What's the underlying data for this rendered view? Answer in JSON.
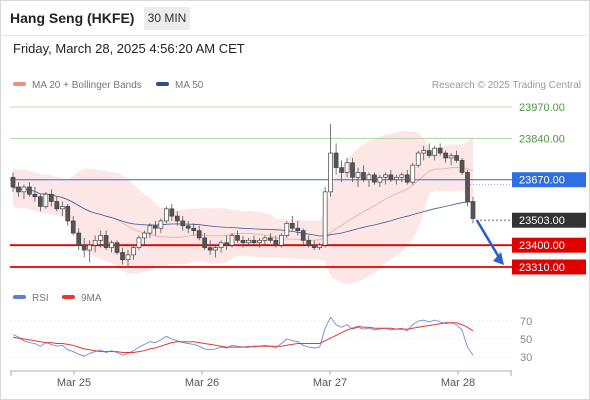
{
  "header": {
    "title": "Hang Seng (HKFE)",
    "timeframe": "30 MIN"
  },
  "datetime": "Friday, March 28, 2025 4:56:20 AM CET",
  "legend": {
    "bollinger": {
      "label": "MA 20 + Bollinger Bands",
      "color": "#f28b82"
    },
    "ma50": {
      "label": "MA 50",
      "color": "#2e4f8c"
    },
    "rsi": {
      "label": "RSI",
      "color": "#5b7fd6"
    },
    "rsi_ma": {
      "label": "9MA",
      "color": "#e53935"
    }
  },
  "credit": "Research © 2025 Trading Central",
  "levels": [
    {
      "label": "23970.00",
      "value": 23970,
      "style": "green"
    },
    {
      "label": "23840.00",
      "value": 23840,
      "style": "green"
    },
    {
      "label": "23670.00",
      "value": 23670,
      "style": "blue"
    },
    {
      "label": "23503.00",
      "value": 23503,
      "style": "last"
    },
    {
      "label": "23400.00",
      "value": 23400,
      "style": "red"
    },
    {
      "label": "23310.00",
      "value": 23310,
      "style": "red"
    }
  ],
  "rsi_ticks": [
    "70",
    "50",
    "30"
  ],
  "x_labels": [
    "Mar 25",
    "Mar 26",
    "Mar 27",
    "Mar 28"
  ],
  "chart_data": {
    "type": "candlestick",
    "price_range": [
      23260,
      24010
    ],
    "rsi_range": [
      20,
      80
    ],
    "candles": [
      [
        23680,
        23700,
        23620,
        23640
      ],
      [
        23640,
        23660,
        23600,
        23620
      ],
      [
        23620,
        23650,
        23590,
        23640
      ],
      [
        23640,
        23660,
        23600,
        23610
      ],
      [
        23610,
        23640,
        23580,
        23600
      ],
      [
        23600,
        23610,
        23540,
        23560
      ],
      [
        23560,
        23620,
        23550,
        23610
      ],
      [
        23610,
        23630,
        23560,
        23580
      ],
      [
        23580,
        23600,
        23540,
        23550
      ],
      [
        23550,
        23580,
        23520,
        23560
      ],
      [
        23560,
        23570,
        23480,
        23500
      ],
      [
        23500,
        23520,
        23440,
        23450
      ],
      [
        23450,
        23470,
        23380,
        23400
      ],
      [
        23400,
        23430,
        23350,
        23380
      ],
      [
        23380,
        23420,
        23330,
        23400
      ],
      [
        23400,
        23440,
        23370,
        23420
      ],
      [
        23420,
        23460,
        23390,
        23440
      ],
      [
        23440,
        23460,
        23380,
        23390
      ],
      [
        23390,
        23420,
        23370,
        23410
      ],
      [
        23410,
        23420,
        23360,
        23370
      ],
      [
        23370,
        23390,
        23320,
        23340
      ],
      [
        23340,
        23380,
        23310,
        23360
      ],
      [
        23360,
        23400,
        23340,
        23390
      ],
      [
        23390,
        23440,
        23380,
        23430
      ],
      [
        23430,
        23460,
        23400,
        23450
      ],
      [
        23450,
        23490,
        23430,
        23480
      ],
      [
        23480,
        23500,
        23440,
        23470
      ],
      [
        23470,
        23510,
        23450,
        23500
      ],
      [
        23500,
        23560,
        23490,
        23550
      ],
      [
        23550,
        23570,
        23500,
        23520
      ],
      [
        23520,
        23540,
        23480,
        23500
      ],
      [
        23500,
        23520,
        23460,
        23480
      ],
      [
        23480,
        23500,
        23450,
        23470
      ],
      [
        23470,
        23490,
        23440,
        23460
      ],
      [
        23460,
        23480,
        23420,
        23430
      ],
      [
        23430,
        23450,
        23380,
        23390
      ],
      [
        23390,
        23420,
        23360,
        23380
      ],
      [
        23380,
        23400,
        23350,
        23390
      ],
      [
        23390,
        23420,
        23370,
        23410
      ],
      [
        23410,
        23440,
        23380,
        23400
      ],
      [
        23400,
        23450,
        23390,
        23440
      ],
      [
        23440,
        23460,
        23410,
        23420
      ],
      [
        23420,
        23440,
        23390,
        23410
      ],
      [
        23410,
        23430,
        23400,
        23420
      ],
      [
        23420,
        23440,
        23400,
        23410
      ],
      [
        23410,
        23430,
        23390,
        23420
      ],
      [
        23420,
        23440,
        23400,
        23430
      ],
      [
        23430,
        23450,
        23410,
        23420
      ],
      [
        23420,
        23440,
        23390,
        23400
      ],
      [
        23400,
        23450,
        23390,
        23440
      ],
      [
        23440,
        23500,
        23430,
        23490
      ],
      [
        23490,
        23520,
        23460,
        23470
      ],
      [
        23470,
        23500,
        23440,
        23460
      ],
      [
        23460,
        23470,
        23400,
        23420
      ],
      [
        23420,
        23440,
        23390,
        23400
      ],
      [
        23400,
        23420,
        23380,
        23390
      ],
      [
        23390,
        23410,
        23380,
        23400
      ],
      [
        23400,
        23640,
        23390,
        23620
      ],
      [
        23620,
        23900,
        23600,
        23780
      ],
      [
        23780,
        23820,
        23690,
        23720
      ],
      [
        23720,
        23750,
        23660,
        23700
      ],
      [
        23700,
        23760,
        23680,
        23740
      ],
      [
        23740,
        23760,
        23660,
        23680
      ],
      [
        23680,
        23720,
        23640,
        23700
      ],
      [
        23700,
        23730,
        23660,
        23670
      ],
      [
        23670,
        23700,
        23640,
        23690
      ],
      [
        23690,
        23700,
        23650,
        23660
      ],
      [
        23660,
        23690,
        23640,
        23680
      ],
      [
        23680,
        23700,
        23650,
        23690
      ],
      [
        23690,
        23710,
        23660,
        23670
      ],
      [
        23670,
        23690,
        23650,
        23680
      ],
      [
        23680,
        23700,
        23660,
        23690
      ],
      [
        23690,
        23710,
        23650,
        23660
      ],
      [
        23660,
        23740,
        23650,
        23730
      ],
      [
        23730,
        23790,
        23720,
        23780
      ],
      [
        23780,
        23810,
        23750,
        23790
      ],
      [
        23790,
        23820,
        23760,
        23770
      ],
      [
        23770,
        23810,
        23750,
        23800
      ],
      [
        23800,
        23820,
        23770,
        23780
      ],
      [
        23780,
        23790,
        23740,
        23760
      ],
      [
        23760,
        23780,
        23730,
        23770
      ],
      [
        23770,
        23790,
        23740,
        23750
      ],
      [
        23750,
        23760,
        23690,
        23700
      ],
      [
        23700,
        23710,
        23560,
        23580
      ],
      [
        23580,
        23600,
        23490,
        23510
      ]
    ],
    "rsi": [
      55,
      52,
      48,
      46,
      45,
      42,
      46,
      44,
      42,
      43,
      38,
      36,
      33,
      31,
      34,
      36,
      38,
      35,
      37,
      35,
      32,
      34,
      37,
      41,
      44,
      47,
      46,
      49,
      53,
      50,
      48,
      46,
      45,
      44,
      42,
      39,
      38,
      39,
      41,
      40,
      43,
      42,
      41,
      42,
      41,
      42,
      43,
      42,
      40,
      45,
      50,
      48,
      47,
      43,
      41,
      40,
      41,
      62,
      74,
      66,
      63,
      66,
      61,
      63,
      61,
      62,
      60,
      61,
      62,
      60,
      61,
      62,
      59,
      66,
      70,
      71,
      69,
      71,
      69,
      67,
      68,
      66,
      60,
      41,
      32
    ],
    "rsi_ma": [
      52,
      51,
      50,
      49,
      48,
      47,
      46,
      46,
      45,
      45,
      44,
      43,
      41,
      39,
      38,
      37,
      36,
      36,
      36,
      36,
      35,
      35,
      35,
      36,
      37,
      39,
      40,
      42,
      44,
      46,
      47,
      47,
      47,
      47,
      46,
      45,
      44,
      43,
      42,
      41,
      41,
      41,
      41,
      41,
      42,
      42,
      42,
      42,
      42,
      42,
      43,
      44,
      45,
      45,
      45,
      45,
      45,
      48,
      51,
      54,
      57,
      60,
      62,
      64,
      63,
      63,
      62,
      62,
      62,
      62,
      61,
      61,
      61,
      62,
      63,
      64,
      65,
      66,
      67,
      68,
      68,
      68,
      66,
      63,
      59
    ]
  }
}
